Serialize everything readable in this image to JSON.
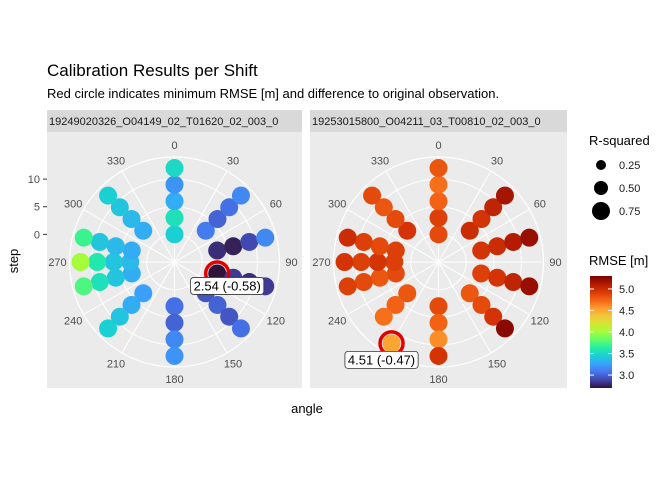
{
  "chart_data": {
    "type": "polar-scatter",
    "title": "Calibration Results per Shift",
    "subtitle": "Red circle indicates minimum RMSE [m] and difference to original observation.",
    "xlabel": "angle",
    "ylabel": "step",
    "angle_ticks": [
      "0",
      "30",
      "60",
      "90",
      "120",
      "150",
      "180",
      "210",
      "240",
      "270",
      "300",
      "330"
    ],
    "step_ticks": [
      "0",
      "5",
      "10"
    ],
    "step_tick_values": [
      0,
      5,
      10
    ],
    "step_range": [
      -5,
      14
    ],
    "legend": {
      "size_title": "R-squared",
      "size_items": [
        {
          "label": "0.25",
          "value": 0.25
        },
        {
          "label": "0.50",
          "value": 0.5
        },
        {
          "label": "0.75",
          "value": 0.75
        }
      ],
      "color_title": "RMSE [m]",
      "color_ticks": [
        "3.0",
        "3.5",
        "4.0",
        "4.5",
        "5.0"
      ],
      "color_tick_values": [
        3.0,
        3.5,
        4.0,
        4.5,
        5.0
      ],
      "color_range": [
        2.7,
        5.3
      ]
    },
    "panels": [
      {
        "strip": "19249020326_O04149_02_T01620_02_003_0",
        "min_label": "2.54 (-0.58)",
        "min_point": {
          "angle": 105,
          "step": 3
        },
        "label_offset": {
          "dx": 10,
          "dy": 12
        },
        "points": [
          {
            "angle": 0,
            "step": 0,
            "rmse": 3.45
          },
          {
            "angle": 0,
            "step": 3,
            "rmse": 3.55
          },
          {
            "angle": 0,
            "step": 6,
            "rmse": 3.3
          },
          {
            "angle": 0,
            "step": 9,
            "rmse": 3.2
          },
          {
            "angle": 0,
            "step": 12,
            "rmse": 3.5
          },
          {
            "angle": 45,
            "step": 3,
            "rmse": 3.1
          },
          {
            "angle": 45,
            "step": 6,
            "rmse": 3.0
          },
          {
            "angle": 45,
            "step": 9,
            "rmse": 3.05
          },
          {
            "angle": 45,
            "step": 12,
            "rmse": 3.15
          },
          {
            "angle": 75,
            "step": 3,
            "rmse": 2.8
          },
          {
            "angle": 75,
            "step": 6,
            "rmse": 2.75
          },
          {
            "angle": 75,
            "step": 9,
            "rmse": 2.9
          },
          {
            "angle": 75,
            "step": 12,
            "rmse": 3.15
          },
          {
            "angle": 105,
            "step": 3,
            "rmse": 2.54
          },
          {
            "angle": 105,
            "step": 6,
            "rmse": 2.85
          },
          {
            "angle": 105,
            "step": 9,
            "rmse": 2.8
          },
          {
            "angle": 105,
            "step": 12,
            "rmse": 2.85
          },
          {
            "angle": 135,
            "step": 3,
            "rmse": 2.95
          },
          {
            "angle": 135,
            "step": 6,
            "rmse": 3.0
          },
          {
            "angle": 135,
            "step": 9,
            "rmse": 2.95
          },
          {
            "angle": 135,
            "step": 12,
            "rmse": 3.05
          },
          {
            "angle": 180,
            "step": 3,
            "rmse": 3.05
          },
          {
            "angle": 180,
            "step": 6,
            "rmse": 3.0
          },
          {
            "angle": 180,
            "step": 9,
            "rmse": 3.15
          },
          {
            "angle": 180,
            "step": 12,
            "rmse": 3.2
          },
          {
            "angle": 225,
            "step": 3,
            "rmse": 3.25
          },
          {
            "angle": 225,
            "step": 6,
            "rmse": 3.3
          },
          {
            "angle": 225,
            "step": 9,
            "rmse": 3.4
          },
          {
            "angle": 225,
            "step": 12,
            "rmse": 3.45
          },
          {
            "angle": 255,
            "step": 3,
            "rmse": 3.3
          },
          {
            "angle": 255,
            "step": 6,
            "rmse": 3.4
          },
          {
            "angle": 255,
            "step": 9,
            "rmse": 3.55
          },
          {
            "angle": 255,
            "step": 12,
            "rmse": 3.75
          },
          {
            "angle": 270,
            "step": 3,
            "rmse": 3.35
          },
          {
            "angle": 270,
            "step": 6,
            "rmse": 3.4
          },
          {
            "angle": 270,
            "step": 9,
            "rmse": 3.6
          },
          {
            "angle": 270,
            "step": 12,
            "rmse": 4.0
          },
          {
            "angle": 285,
            "step": 3,
            "rmse": 3.3
          },
          {
            "angle": 285,
            "step": 6,
            "rmse": 3.35
          },
          {
            "angle": 285,
            "step": 9,
            "rmse": 3.4
          },
          {
            "angle": 285,
            "step": 12,
            "rmse": 3.7
          },
          {
            "angle": 315,
            "step": 3,
            "rmse": 3.3
          },
          {
            "angle": 315,
            "step": 6,
            "rmse": 3.35
          },
          {
            "angle": 315,
            "step": 9,
            "rmse": 3.4
          },
          {
            "angle": 315,
            "step": 12,
            "rmse": 3.45
          }
        ]
      },
      {
        "strip": "19253015800_O04211_03_T00810_02_003_0",
        "min_label": "4.51 (-0.47)",
        "min_point": {
          "angle": 210,
          "step": 12
        },
        "label_offset": {
          "dx": -10,
          "dy": 16
        },
        "points": [
          {
            "angle": 0,
            "step": 0,
            "rmse": 4.85
          },
          {
            "angle": 0,
            "step": 3,
            "rmse": 4.9
          },
          {
            "angle": 0,
            "step": 6,
            "rmse": 4.75
          },
          {
            "angle": 0,
            "step": 9,
            "rmse": 4.7
          },
          {
            "angle": 0,
            "step": 12,
            "rmse": 4.8
          },
          {
            "angle": 45,
            "step": 3,
            "rmse": 5.0
          },
          {
            "angle": 45,
            "step": 6,
            "rmse": 4.95
          },
          {
            "angle": 45,
            "step": 9,
            "rmse": 5.05
          },
          {
            "angle": 45,
            "step": 12,
            "rmse": 5.15
          },
          {
            "angle": 75,
            "step": 3,
            "rmse": 4.95
          },
          {
            "angle": 75,
            "step": 6,
            "rmse": 5.0
          },
          {
            "angle": 75,
            "step": 9,
            "rmse": 5.1
          },
          {
            "angle": 75,
            "step": 12,
            "rmse": 5.2
          },
          {
            "angle": 105,
            "step": 3,
            "rmse": 4.9
          },
          {
            "angle": 105,
            "step": 6,
            "rmse": 4.95
          },
          {
            "angle": 105,
            "step": 9,
            "rmse": 5.05
          },
          {
            "angle": 105,
            "step": 12,
            "rmse": 5.2
          },
          {
            "angle": 135,
            "step": 3,
            "rmse": 4.8
          },
          {
            "angle": 135,
            "step": 6,
            "rmse": 4.85
          },
          {
            "angle": 135,
            "step": 9,
            "rmse": 4.95
          },
          {
            "angle": 135,
            "step": 12,
            "rmse": 5.25
          },
          {
            "angle": 180,
            "step": 3,
            "rmse": 4.85
          },
          {
            "angle": 180,
            "step": 6,
            "rmse": 4.75
          },
          {
            "angle": 180,
            "step": 9,
            "rmse": 4.6
          },
          {
            "angle": 180,
            "step": 12,
            "rmse": 4.95
          },
          {
            "angle": 225,
            "step": 3,
            "rmse": 4.8
          },
          {
            "angle": 225,
            "step": 6,
            "rmse": 4.75
          },
          {
            "angle": 225,
            "step": 9,
            "rmse": 4.7
          },
          {
            "angle": 210,
            "step": 12,
            "rmse": 4.51
          },
          {
            "angle": 255,
            "step": 3,
            "rmse": 4.85
          },
          {
            "angle": 255,
            "step": 6,
            "rmse": 4.8
          },
          {
            "angle": 255,
            "step": 9,
            "rmse": 4.85
          },
          {
            "angle": 255,
            "step": 12,
            "rmse": 4.9
          },
          {
            "angle": 270,
            "step": 3,
            "rmse": 4.9
          },
          {
            "angle": 270,
            "step": 6,
            "rmse": 4.95
          },
          {
            "angle": 270,
            "step": 9,
            "rmse": 4.9
          },
          {
            "angle": 270,
            "step": 12,
            "rmse": 4.95
          },
          {
            "angle": 285,
            "step": 3,
            "rmse": 4.9
          },
          {
            "angle": 285,
            "step": 6,
            "rmse": 4.85
          },
          {
            "angle": 285,
            "step": 9,
            "rmse": 4.9
          },
          {
            "angle": 285,
            "step": 12,
            "rmse": 5.0
          },
          {
            "angle": 315,
            "step": 3,
            "rmse": 4.95
          },
          {
            "angle": 315,
            "step": 6,
            "rmse": 4.85
          },
          {
            "angle": 315,
            "step": 9,
            "rmse": 4.8
          },
          {
            "angle": 315,
            "step": 12,
            "rmse": 4.85
          }
        ]
      }
    ]
  },
  "colors": {
    "panel_bg": "#ebebeb",
    "strip_bg": "#d9d9d9",
    "grid": "#ffffff",
    "min_circle": "#e00000",
    "scale": [
      "#30123b",
      "#4145ab",
      "#4675ed",
      "#39a2fc",
      "#1bcfd4",
      "#24eca6",
      "#61fc6c",
      "#a4fc3b",
      "#d1e834",
      "#f3c63a",
      "#fe9b2d",
      "#f36315",
      "#d93806",
      "#b11901",
      "#7a0403"
    ]
  }
}
